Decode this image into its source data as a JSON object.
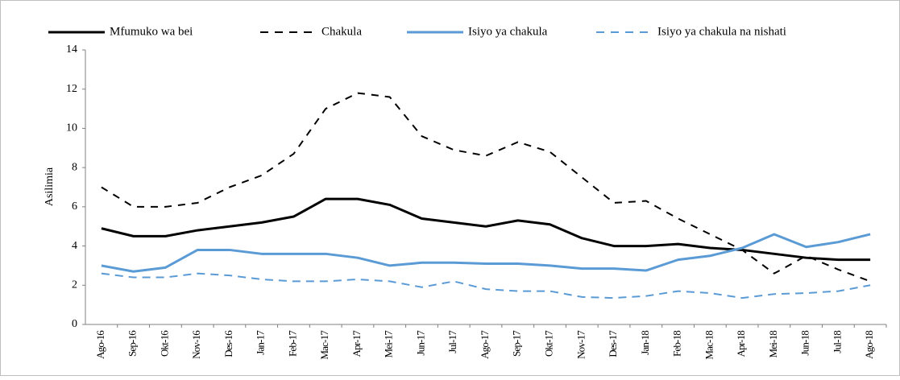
{
  "chart_data": {
    "type": "line",
    "y_label": "Asilimia",
    "categories": [
      "Ago-16",
      "Sep-16",
      "Okt-16",
      "Nov-16",
      "Des-16",
      "Jan-17",
      "Feb-17",
      "Mac-17",
      "Apr-17",
      "Mei-17",
      "Jun-17",
      "Jul-17",
      "Ago-17",
      "Sep-17",
      "Okt-17",
      "Nov-17",
      "Des-17",
      "Jan-18",
      "Feb-18",
      "Mac-18",
      "Apr-18",
      "Mei-18",
      "Jun-18",
      "Jul-18",
      "Ago-18"
    ],
    "series": [
      {
        "name": "Mfumuko wa bei",
        "color": "#000000",
        "dashed": false,
        "values": [
          4.9,
          4.5,
          4.5,
          4.8,
          5.0,
          5.2,
          5.5,
          6.4,
          6.4,
          6.1,
          5.4,
          5.2,
          5.0,
          5.3,
          5.1,
          4.4,
          4.0,
          4.0,
          4.1,
          3.9,
          3.8,
          3.6,
          3.4,
          3.3,
          3.3
        ]
      },
      {
        "name": "Chakula",
        "color": "#000000",
        "dashed": true,
        "values": [
          7.0,
          6.0,
          6.0,
          6.2,
          7.0,
          7.6,
          8.7,
          11.0,
          11.8,
          11.6,
          9.6,
          8.9,
          8.6,
          9.3,
          8.8,
          7.5,
          6.2,
          6.3,
          5.4,
          4.6,
          3.8,
          2.6,
          3.5,
          2.8,
          2.2
        ]
      },
      {
        "name": "Isiyo ya chakula",
        "color": "#5b9bd5",
        "dashed": false,
        "values": [
          3.0,
          2.7,
          2.9,
          3.8,
          3.8,
          3.6,
          3.6,
          3.6,
          3.4,
          3.0,
          3.15,
          3.15,
          3.1,
          3.1,
          3.0,
          2.85,
          2.85,
          2.75,
          3.3,
          3.5,
          3.9,
          4.6,
          3.95,
          4.2,
          4.6
        ]
      },
      {
        "name": "Isiyo ya chakula na nishati",
        "color": "#5b9bd5",
        "dashed": true,
        "values": [
          2.6,
          2.4,
          2.4,
          2.6,
          2.5,
          2.3,
          2.2,
          2.2,
          2.3,
          2.2,
          1.9,
          2.2,
          1.8,
          1.7,
          1.7,
          1.4,
          1.35,
          1.45,
          1.7,
          1.6,
          1.35,
          1.55,
          1.6,
          1.7,
          2.0
        ]
      }
    ],
    "ylim": [
      0,
      14
    ],
    "yticks": [
      0,
      2,
      4,
      6,
      8,
      10,
      12,
      14
    ],
    "grid": false,
    "legend": "top"
  }
}
